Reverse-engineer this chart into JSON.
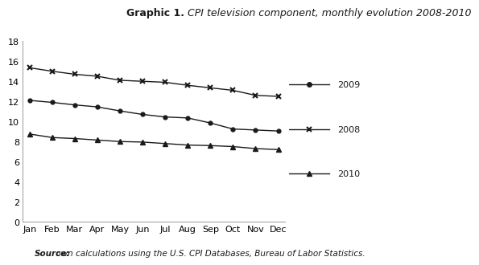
{
  "title_bold": "Graphic 1.",
  "title_italic": " CPI television component, monthly evolution 2008-2010",
  "source_bold": "Source:",
  "source_rest": " own calculations using the U.S. CPI Databases, Bureau of Labor Statistics.",
  "months": [
    "Jan",
    "Feb",
    "Mar",
    "Apr",
    "May",
    "Jun",
    "Jul",
    "Aug",
    "Sep",
    "Oct",
    "Nov",
    "Dec"
  ],
  "series_2009": [
    12.1,
    11.9,
    11.65,
    11.45,
    11.05,
    10.7,
    10.45,
    10.35,
    9.85,
    9.25,
    9.15,
    9.05
  ],
  "series_2008": [
    15.35,
    15.0,
    14.7,
    14.5,
    14.1,
    14.0,
    13.9,
    13.6,
    13.35,
    13.1,
    12.6,
    12.5
  ],
  "series_2010": [
    8.75,
    8.4,
    8.3,
    8.15,
    8.0,
    7.95,
    7.8,
    7.65,
    7.6,
    7.5,
    7.3,
    7.2
  ],
  "ylim": [
    0,
    18
  ],
  "yticks": [
    0,
    2,
    4,
    6,
    8,
    10,
    12,
    14,
    16,
    18
  ],
  "line_color": "#1a1a1a",
  "bg_color": "#ffffff",
  "legend_labels": [
    "2009",
    "2008",
    "2010"
  ],
  "title_fontsize": 9,
  "tick_fontsize": 8,
  "legend_fontsize": 8,
  "source_fontsize": 7.5
}
